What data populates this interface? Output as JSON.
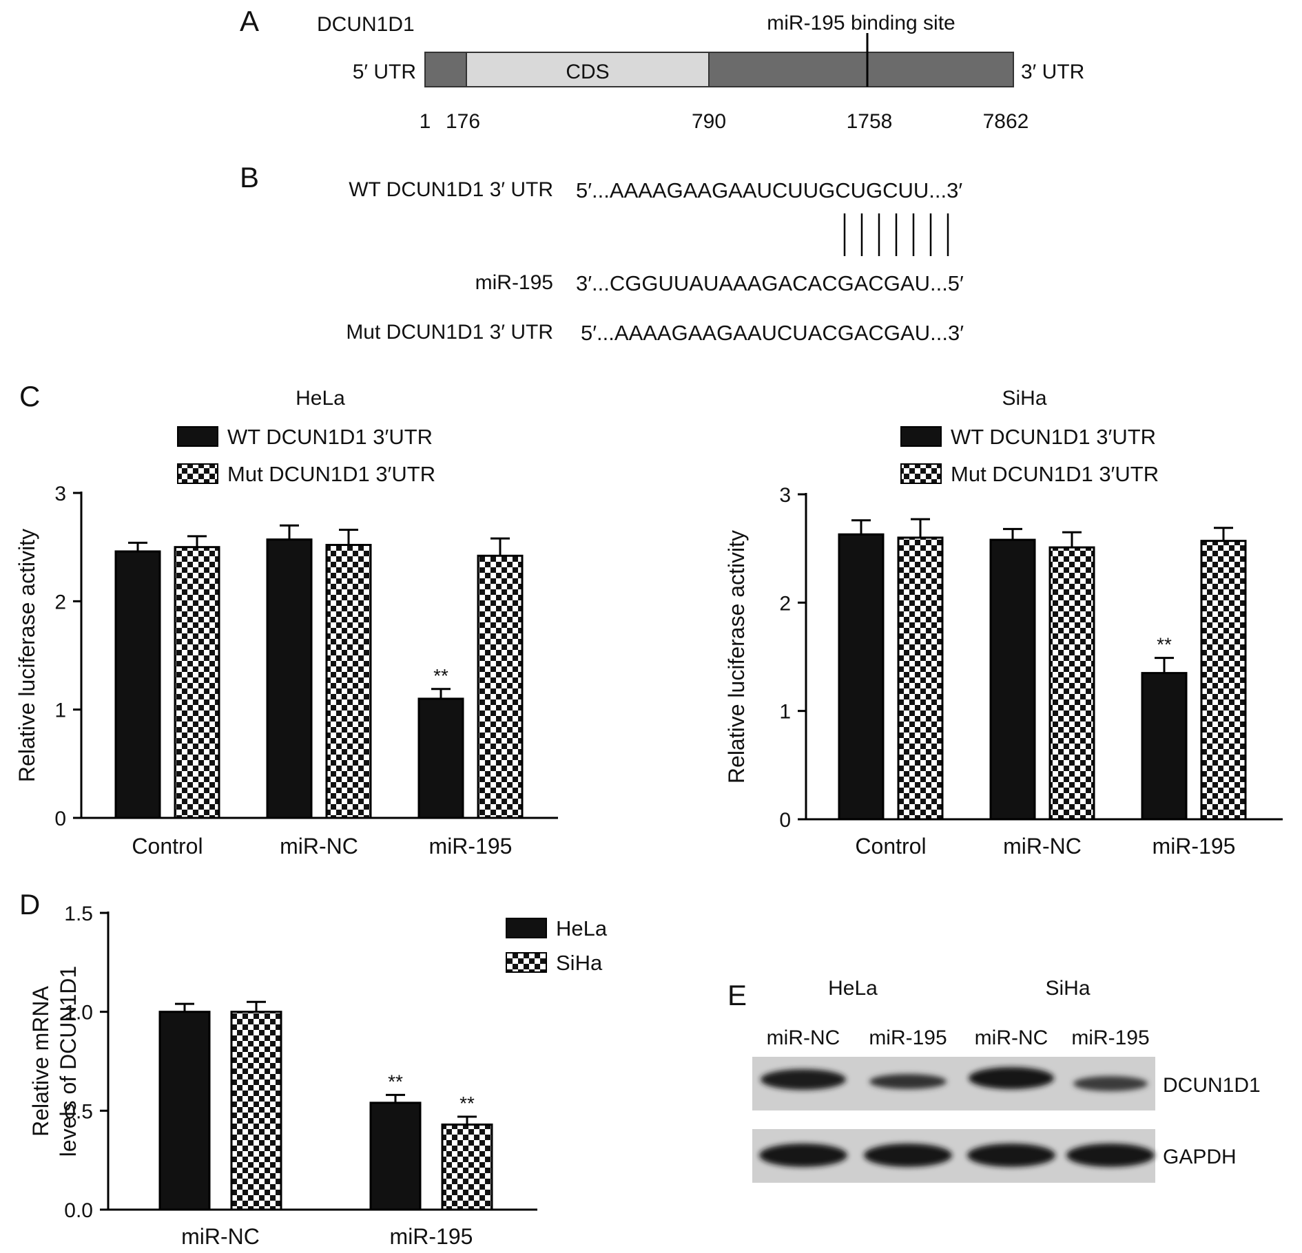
{
  "colors": {
    "ink": "#111111",
    "cds": "#d9d9d9",
    "utr": "#6b6b6b",
    "blot_bg": "#cfcfcf"
  },
  "panel_a": {
    "label": "A",
    "gene": "DCUN1D1",
    "five_utr": "5′ UTR",
    "three_utr": "3′ UTR",
    "cds": "CDS",
    "site_label": "miR-195 binding site",
    "positions": [
      "1",
      "176",
      "790",
      "1758",
      "7862"
    ]
  },
  "panel_b": {
    "label": "B",
    "wt_label": "WT DCUN1D1 3′ UTR",
    "wt_seq": "5′...AAAAGAAGAAUCUUGCUGCUU...3′",
    "mir_label": "miR-195",
    "mir_seq": "3′...CGGUUAUAAAGACACGACGAU...5′",
    "mut_label": "Mut DCUN1D1 3′ UTR",
    "mut_seq": "5′...AAAAGAAGAAUCUACGACGAU...3′",
    "pairing_lines": 7
  },
  "panel_c_label": "C",
  "panel_d_label": "D",
  "panel_e": {
    "label": "E",
    "groups": [
      "HeLa",
      "SiHa"
    ],
    "lanes": [
      "miR-NC",
      "miR-195",
      "miR-NC",
      "miR-195"
    ],
    "bands": [
      "DCUN1D1",
      "GAPDH"
    ]
  },
  "chart_data": [
    {
      "type": "bar",
      "title": "HeLa",
      "ylabel": "Relative luciferase activity",
      "xlabel": "",
      "categories": [
        "Control",
        "miR-NC",
        "miR-195"
      ],
      "ylim": [
        0,
        3
      ],
      "yticks": [
        "0",
        "1",
        "2",
        "3"
      ],
      "series": [
        {
          "name": "WT DCUN1D1 3′UTR",
          "values": [
            2.46,
            2.57,
            1.1
          ],
          "errors": [
            0.08,
            0.13,
            0.09
          ]
        },
        {
          "name": "Mut DCUN1D1 3′UTR",
          "values": [
            2.5,
            2.52,
            2.42
          ],
          "errors": [
            0.1,
            0.14,
            0.16
          ]
        }
      ],
      "annotations": [
        {
          "category": "miR-195",
          "series": 0,
          "text": "**"
        }
      ]
    },
    {
      "type": "bar",
      "title": "SiHa",
      "ylabel": "Relative luciferase activity",
      "xlabel": "",
      "categories": [
        "Control",
        "miR-NC",
        "miR-195"
      ],
      "ylim": [
        0,
        3
      ],
      "yticks": [
        "0",
        "1",
        "2",
        "3"
      ],
      "series": [
        {
          "name": "WT DCUN1D1 3′UTR",
          "values": [
            2.63,
            2.58,
            1.35
          ],
          "errors": [
            0.13,
            0.1,
            0.14
          ]
        },
        {
          "name": "Mut DCUN1D1 3′UTR",
          "values": [
            2.6,
            2.51,
            2.57
          ],
          "errors": [
            0.17,
            0.14,
            0.12
          ]
        }
      ],
      "annotations": [
        {
          "category": "miR-195",
          "series": 0,
          "text": "**"
        }
      ]
    },
    {
      "type": "bar",
      "title": "",
      "ylabel": "Relative mRNA levels of DCUN1D1",
      "ylabel_lines": [
        "Relative mRNA",
        "levels of DCUN1D1"
      ],
      "xlabel": "",
      "categories": [
        "miR-NC",
        "miR-195"
      ],
      "ylim": [
        0,
        1.5
      ],
      "yticks": [
        "0.0",
        "0.5",
        "1.0",
        "1.5"
      ],
      "series": [
        {
          "name": "HeLa",
          "values": [
            1.0,
            0.54
          ],
          "errors": [
            0.04,
            0.04
          ]
        },
        {
          "name": "SiHa",
          "values": [
            1.0,
            0.43
          ],
          "errors": [
            0.05,
            0.04
          ]
        }
      ],
      "annotations": [
        {
          "category": "miR-195",
          "series": 0,
          "text": "**"
        },
        {
          "category": "miR-195",
          "series": 1,
          "text": "**"
        }
      ]
    }
  ]
}
